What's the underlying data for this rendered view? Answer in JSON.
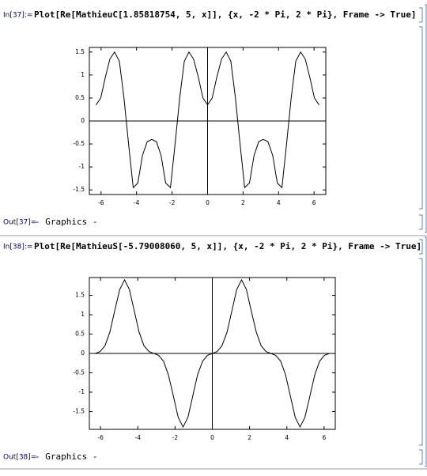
{
  "cells": [
    {
      "in_label": "In[37]:=",
      "input": "Plot[Re[MathieuC[1.85818754, 5, x]], {x, -2 * Pi, 2 * Pi}, Frame -> True]",
      "out_label": "Out[37]=",
      "output": "- Graphics -"
    },
    {
      "in_label": "In[38]:=",
      "input": "Plot[Re[MathieuS[-5.79008060, 5, x]], {x, -2 * Pi, 2 * Pi}, Frame -> True]",
      "out_label": "Out[38]=",
      "output": "- Graphics -"
    }
  ],
  "chart_data": [
    {
      "type": "line",
      "frame": true,
      "axes": true,
      "color": "#000000",
      "x": [
        -6.28,
        -6.02,
        -5.76,
        -5.5,
        -5.24,
        -4.97,
        -4.71,
        -4.45,
        -4.19,
        -3.93,
        -3.67,
        -3.4,
        -3.14,
        -2.88,
        -2.62,
        -2.36,
        -2.09,
        -1.83,
        -1.57,
        -1.31,
        -1.05,
        -0.79,
        -0.52,
        -0.26,
        0,
        0.26,
        0.52,
        0.79,
        1.05,
        1.31,
        1.57,
        1.83,
        2.09,
        2.36,
        2.62,
        2.88,
        3.14,
        3.4,
        3.67,
        3.93,
        4.19,
        4.45,
        4.71,
        4.97,
        5.24,
        5.5,
        5.76,
        6.02,
        6.28
      ],
      "values": [
        0.35,
        0.5,
        0.95,
        1.35,
        1.5,
        1.3,
        0.5,
        -0.5,
        -1.45,
        -1.35,
        -0.75,
        -0.45,
        -0.4,
        -0.45,
        -0.75,
        -1.35,
        -1.45,
        -0.5,
        0.5,
        1.3,
        1.5,
        1.35,
        0.95,
        0.5,
        0.35,
        0.5,
        0.95,
        1.35,
        1.5,
        1.3,
        0.5,
        -0.5,
        -1.45,
        -1.35,
        -0.75,
        -0.45,
        -0.4,
        -0.45,
        -0.75,
        -1.35,
        -1.45,
        -0.5,
        0.5,
        1.3,
        1.5,
        1.35,
        0.95,
        0.5,
        0.35
      ],
      "xlim": [
        -6.66,
        6.66
      ],
      "ylim": [
        -1.6,
        1.6
      ],
      "xticks": [
        -6,
        -4,
        -2,
        0,
        2,
        4,
        6
      ],
      "yticks": [
        -1.5,
        -1,
        -0.5,
        0,
        0.5,
        1,
        1.5
      ]
    },
    {
      "type": "line",
      "frame": true,
      "axes": true,
      "color": "#000000",
      "x": [
        -6.28,
        -6.02,
        -5.76,
        -5.5,
        -5.24,
        -4.97,
        -4.71,
        -4.45,
        -4.19,
        -3.93,
        -3.67,
        -3.4,
        -3.14,
        -2.88,
        -2.62,
        -2.36,
        -2.09,
        -1.83,
        -1.57,
        -1.31,
        -1.05,
        -0.79,
        -0.52,
        -0.26,
        0,
        0.26,
        0.52,
        0.79,
        1.05,
        1.31,
        1.57,
        1.83,
        2.09,
        2.36,
        2.62,
        2.88,
        3.14,
        3.4,
        3.67,
        3.93,
        4.19,
        4.45,
        4.71,
        4.97,
        5.24,
        5.5,
        5.76,
        6.02,
        6.28
      ],
      "values": [
        0,
        0.05,
        0.2,
        0.55,
        1.1,
        1.65,
        1.9,
        1.65,
        1.1,
        0.55,
        0.2,
        0.05,
        0,
        -0.05,
        -0.2,
        -0.55,
        -1.1,
        -1.65,
        -1.9,
        -1.65,
        -1.1,
        -0.55,
        -0.2,
        -0.05,
        0,
        0.05,
        0.2,
        0.55,
        1.1,
        1.65,
        1.9,
        1.65,
        1.1,
        0.55,
        0.2,
        0.05,
        0,
        -0.05,
        -0.2,
        -0.55,
        -1.1,
        -1.65,
        -1.9,
        -1.65,
        -1.1,
        -0.55,
        -0.2,
        -0.05,
        0
      ],
      "xlim": [
        -6.6,
        6.6
      ],
      "ylim": [
        -1.96,
        1.96
      ],
      "xticks": [
        -6,
        -4,
        -2,
        0,
        2,
        4,
        6
      ],
      "yticks": [
        -1.5,
        -1,
        -0.5,
        0,
        0.5,
        1,
        1.5
      ]
    }
  ]
}
